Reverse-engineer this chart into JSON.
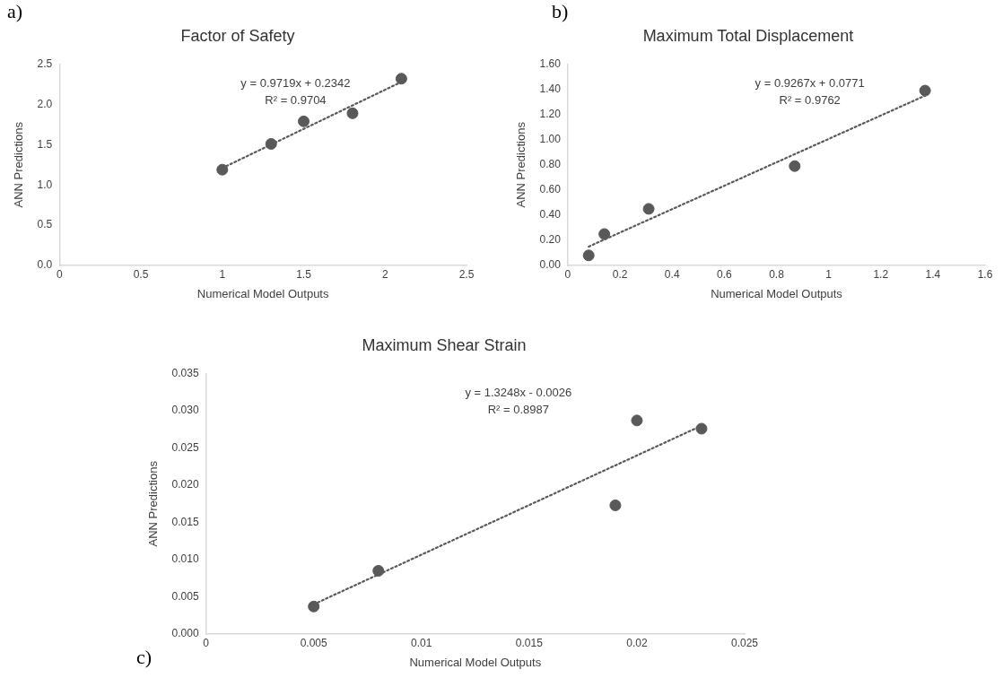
{
  "chart_data": [
    {
      "type": "scatter",
      "title": "Factor of Safety",
      "xlabel": "Numerical Model Outputs",
      "ylabel": "ANN Predictions",
      "annotations": [
        "a)",
        "y = 0.9719x + 0.2342",
        "R² = 0.9704"
      ],
      "series": [
        {
          "color": "#595959",
          "marker": "circle",
          "x": [
            1,
            1.3,
            1.5,
            1.8,
            2.1
          ],
          "values": [
            1.19,
            1.51,
            1.79,
            1.89,
            2.32
          ]
        },
        {
          "type": "line",
          "color": "#595959",
          "marker": "none",
          "line_style": "dotted",
          "x": [
            1,
            2.1
          ],
          "values": [
            1.21,
            2.28
          ]
        }
      ],
      "xlim": [
        0,
        2.5
      ],
      "xticks": [
        0,
        0.5,
        1,
        1.5,
        2,
        2.5
      ],
      "ylim": [
        0,
        2.5
      ],
      "yticks": [
        {
          "value": 0,
          "label": "0.0"
        },
        0.5,
        {
          "value": 1,
          "label": "1.0"
        },
        1.5,
        {
          "value": 2,
          "label": "2.0"
        },
        2.5
      ],
      "grid": false,
      "legend": false
    },
    {
      "type": "scatter",
      "title": "Maximum Total Displacement",
      "xlabel": "Numerical Model Outputs",
      "ylabel": "ANN Predictions",
      "annotations": [
        "b)",
        "y = 0.9267x + 0.0771",
        "R² = 0.9762"
      ],
      "series": [
        {
          "color": "#595959",
          "marker": "circle",
          "x": [
            0.08,
            0.14,
            0.31,
            0.87,
            1.37
          ],
          "values": [
            0.08,
            0.25,
            0.45,
            0.79,
            1.39
          ]
        },
        {
          "type": "line",
          "color": "#595959",
          "marker": "none",
          "line_style": "dotted",
          "x": [
            0.08,
            1.37
          ],
          "values": [
            0.15,
            1.35
          ]
        }
      ],
      "xlim": [
        0,
        1.6
      ],
      "xticks": [
        0,
        0.2,
        0.4,
        0.6,
        0.8,
        1,
        1.2,
        1.4,
        1.6
      ],
      "ylim": [
        0,
        1.6
      ],
      "yticks": [
        {
          "value": 0,
          "label": "0.00"
        },
        {
          "value": 0.2,
          "label": "0.20"
        },
        {
          "value": 0.4,
          "label": "0.40"
        },
        {
          "value": 0.6,
          "label": "0.60"
        },
        {
          "value": 0.8,
          "label": "0.80"
        },
        {
          "value": 1,
          "label": "1.00"
        },
        {
          "value": 1.2,
          "label": "1.20"
        },
        {
          "value": 1.4,
          "label": "1.40"
        },
        {
          "value": 1.6,
          "label": "1.60"
        }
      ],
      "grid": false,
      "legend": false
    },
    {
      "type": "scatter",
      "title": "Maximum Shear Strain",
      "xlabel": "Numerical Model Outputs",
      "ylabel": "ANN Predictions",
      "annotations": [
        "c)",
        "y = 1.3248x - 0.0026",
        "R² = 0.8987"
      ],
      "series": [
        {
          "color": "#595959",
          "marker": "circle",
          "x": [
            0.005,
            0.008,
            0.019,
            0.02,
            0.023
          ],
          "values": [
            0.0037,
            0.0085,
            0.0173,
            0.0287,
            0.0276
          ]
        },
        {
          "type": "line",
          "color": "#595959",
          "marker": "none",
          "line_style": "dotted",
          "x": [
            0.005,
            0.023
          ],
          "values": [
            0.004,
            0.028
          ]
        }
      ],
      "xlim": [
        0,
        0.025
      ],
      "xticks": [
        0,
        0.005,
        0.01,
        0.015,
        0.02,
        0.025
      ],
      "ylim": [
        0,
        0.035
      ],
      "yticks": [
        {
          "value": 0,
          "label": "0.000"
        },
        0.005,
        {
          "value": 0.01,
          "label": "0.010"
        },
        0.015,
        {
          "value": 0.02,
          "label": "0.020"
        },
        0.025,
        {
          "value": 0.03,
          "label": "0.030"
        },
        0.035
      ],
      "grid": false,
      "legend": false
    }
  ]
}
